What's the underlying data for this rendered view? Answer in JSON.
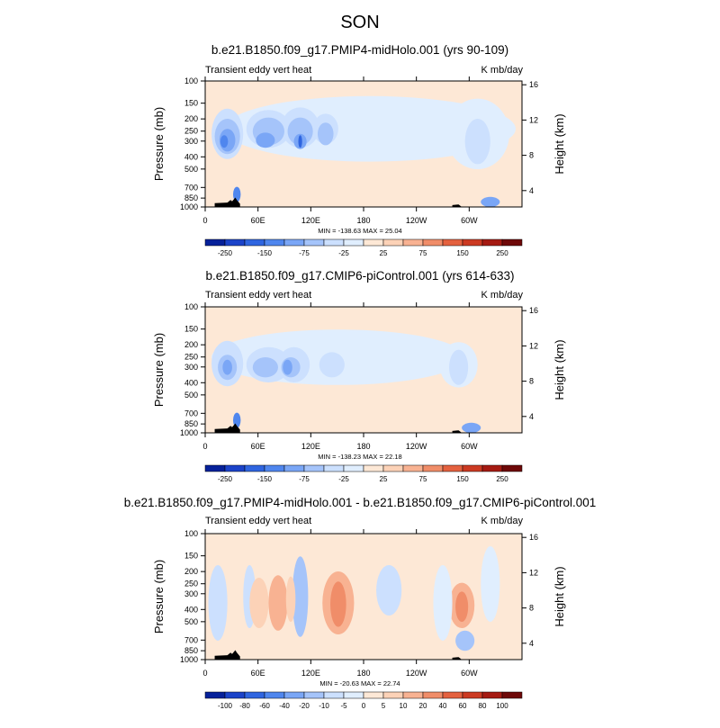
{
  "figure": {
    "title": "SON"
  },
  "chart_data": [
    {
      "type": "heatmap",
      "title": "b.e21.B1850.f09_g17.PMIP4-midHolo.001 (yrs 90-109)",
      "left_label": "Transient eddy vert heat",
      "right_label": "K mb/day",
      "ylabel": "Pressure (mb)",
      "y2label": "Height (km)",
      "x_ticks": [
        "0",
        "60E",
        "120E",
        "180",
        "120W",
        "60W"
      ],
      "y_ticks": [
        "100",
        "150",
        "200",
        "250",
        "300",
        "400",
        "500",
        "700",
        "850",
        "1000"
      ],
      "y2_ticks": [
        "16",
        "12",
        "8",
        "4"
      ],
      "stats_text": "MIN = -138.63   MAX =  25.04",
      "min": -138.63,
      "max": 25.04,
      "colorbar": {
        "levels": [
          -250,
          -200,
          -150,
          -100,
          -75,
          -50,
          -25,
          0,
          25,
          50,
          75,
          100,
          150,
          200,
          250
        ],
        "labels": [
          "-250",
          "-150",
          "-75",
          "-25",
          "25",
          "75",
          "150",
          "250"
        ]
      }
    },
    {
      "type": "heatmap",
      "title": "b.e21.B1850.f09_g17.CMIP6-piControl.001 (yrs 614-633)",
      "left_label": "Transient eddy vert heat",
      "right_label": "K mb/day",
      "ylabel": "Pressure (mb)",
      "y2label": "Height (km)",
      "x_ticks": [
        "0",
        "60E",
        "120E",
        "180",
        "120W",
        "60W"
      ],
      "y_ticks": [
        "100",
        "150",
        "200",
        "250",
        "300",
        "400",
        "500",
        "700",
        "850",
        "1000"
      ],
      "y2_ticks": [
        "16",
        "12",
        "8",
        "4"
      ],
      "stats_text": "MIN = -138.23   MAX =  22.18",
      "min": -138.23,
      "max": 22.18,
      "colorbar": {
        "levels": [
          -250,
          -200,
          -150,
          -100,
          -75,
          -50,
          -25,
          0,
          25,
          50,
          75,
          100,
          150,
          200,
          250
        ],
        "labels": [
          "-250",
          "-150",
          "-75",
          "-25",
          "25",
          "75",
          "150",
          "250"
        ]
      }
    },
    {
      "type": "heatmap",
      "title": "b.e21.B1850.f09_g17.PMIP4-midHolo.001 - b.e21.B1850.f09_g17.CMIP6-piControl.001",
      "left_label": "Transient eddy vert heat",
      "right_label": "K mb/day",
      "ylabel": "Pressure (mb)",
      "y2label": "Height (km)",
      "x_ticks": [
        "0",
        "60E",
        "120E",
        "180",
        "120W",
        "60W"
      ],
      "y_ticks": [
        "100",
        "150",
        "200",
        "250",
        "300",
        "400",
        "500",
        "700",
        "850",
        "1000"
      ],
      "y2_ticks": [
        "16",
        "12",
        "8",
        "4"
      ],
      "stats_text": "MIN = -20.63   MAX =  22.74",
      "min": -20.63,
      "max": 22.74,
      "colorbar": {
        "levels": [
          -100,
          -80,
          -60,
          -40,
          -20,
          -10,
          -5,
          0,
          5,
          10,
          20,
          40,
          60,
          80,
          100
        ],
        "labels": [
          "-100",
          "-80",
          "-60",
          "-40",
          "-20",
          "-10",
          "-5",
          "0",
          "5",
          "10",
          "20",
          "40",
          "60",
          "80",
          "100"
        ]
      }
    }
  ],
  "colors": {
    "palette": [
      "#06219a",
      "#1b43c9",
      "#2f65e0",
      "#4f86ee",
      "#7aa6f6",
      "#a5c4fa",
      "#cce0fe",
      "#e0eefe",
      "#fde8d6",
      "#fcd2b7",
      "#f8b292",
      "#f08d69",
      "#e4613f",
      "#cc3a22",
      "#a51a12",
      "#6e0808"
    ],
    "terrain": "#000000"
  }
}
